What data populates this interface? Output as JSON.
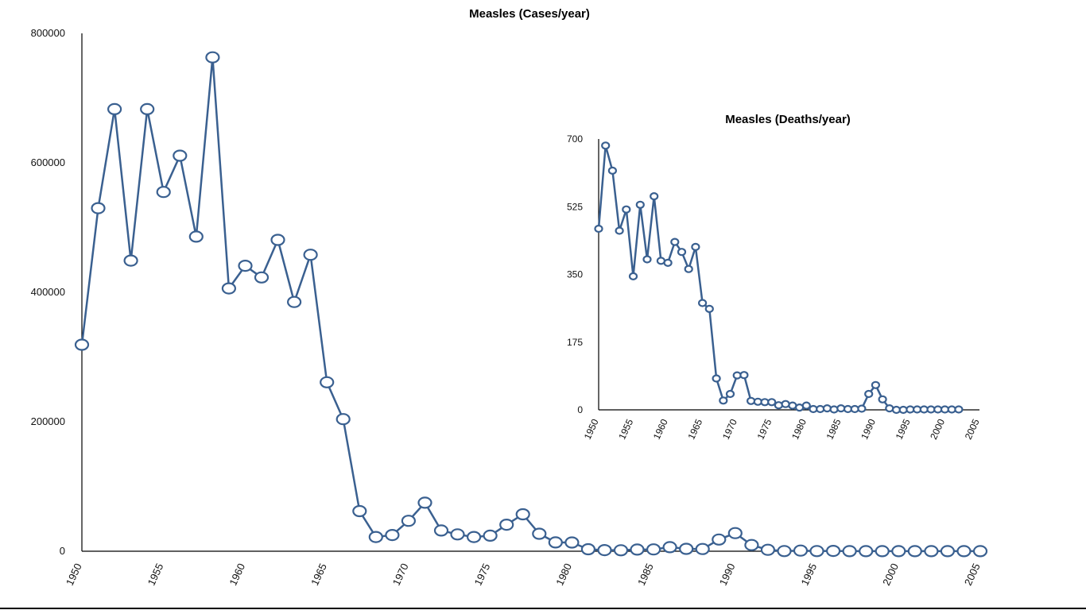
{
  "colors": {
    "series": "#3a6090"
  },
  "chart_data": [
    {
      "id": "cases",
      "type": "line",
      "title": "Measles (Cases/year)",
      "xlabel": "",
      "ylabel": "",
      "xlim": [
        1950,
        2005
      ],
      "ylim": [
        0,
        800000
      ],
      "y_ticks": [
        0,
        200000,
        400000,
        600000,
        800000
      ],
      "y_tick_labels": [
        "0",
        "200000",
        "400000",
        "600000",
        "800000"
      ],
      "x_ticks": [
        1950,
        1955,
        1960,
        1965,
        1970,
        1975,
        1980,
        1985,
        1990,
        1995,
        2000,
        2005
      ],
      "x_tick_labels": [
        "1950",
        "1955",
        "1960",
        "1965",
        "1970",
        "1975",
        "1980",
        "1985",
        "1990",
        "1995",
        "2000",
        "2005"
      ],
      "x": [
        1950,
        1951,
        1952,
        1953,
        1954,
        1955,
        1956,
        1957,
        1958,
        1959,
        1960,
        1961,
        1962,
        1963,
        1964,
        1965,
        1966,
        1967,
        1968,
        1969,
        1970,
        1971,
        1972,
        1973,
        1974,
        1975,
        1976,
        1977,
        1978,
        1979,
        1980,
        1981,
        1982,
        1983,
        1984,
        1985,
        1986,
        1987,
        1988,
        1989,
        1990,
        1991,
        1992,
        1993,
        1994,
        1995,
        1996,
        1997,
        1998,
        1999,
        2000,
        2001,
        2002,
        2003,
        2004,
        2005
      ],
      "values": [
        319000,
        530000,
        683000,
        449000,
        683000,
        555000,
        611000,
        486000,
        763000,
        406000,
        441000,
        423000,
        481000,
        385000,
        458000,
        261000,
        204000,
        62000,
        22000,
        25000,
        47000,
        75000,
        32000,
        26000,
        22000,
        24000,
        41000,
        57000,
        27000,
        13600,
        13500,
        3100,
        1700,
        1500,
        2600,
        2800,
        6300,
        3700,
        3400,
        18000,
        28000,
        9600,
        2200,
        300,
        1000,
        300,
        500,
        100,
        100,
        100,
        100,
        100,
        100,
        100,
        100,
        100
      ]
    },
    {
      "id": "deaths",
      "type": "line",
      "title": "Measles (Deaths/year)",
      "xlabel": "",
      "ylabel": "",
      "xlim": [
        1950,
        2005
      ],
      "ylim": [
        0,
        700
      ],
      "y_ticks": [
        0,
        175,
        350,
        525,
        700
      ],
      "y_tick_labels": [
        "0",
        "175",
        "350",
        "525",
        "700"
      ],
      "x_ticks": [
        1950,
        1955,
        1960,
        1965,
        1970,
        1975,
        1980,
        1985,
        1990,
        1995,
        2000,
        2005
      ],
      "x_tick_labels": [
        "1950",
        "1955",
        "1960",
        "1965",
        "1970",
        "1975",
        "1980",
        "1985",
        "1990",
        "1995",
        "2000",
        "2005"
      ],
      "x": [
        1950,
        1951,
        1952,
        1953,
        1954,
        1955,
        1956,
        1957,
        1958,
        1959,
        1960,
        1961,
        1962,
        1963,
        1964,
        1965,
        1966,
        1967,
        1968,
        1969,
        1970,
        1971,
        1972,
        1973,
        1974,
        1975,
        1976,
        1977,
        1978,
        1979,
        1980,
        1981,
        1982,
        1983,
        1984,
        1985,
        1986,
        1987,
        1988,
        1989,
        1990,
        1991,
        1992,
        1993,
        1994,
        1995,
        1996,
        1997,
        1998,
        1999,
        2000,
        2001,
        2002
      ],
      "values": [
        468,
        683,
        618,
        463,
        518,
        345,
        530,
        389,
        552,
        385,
        380,
        434,
        408,
        364,
        421,
        276,
        261,
        81,
        24,
        41,
        89,
        90,
        23,
        21,
        20,
        20,
        12,
        15,
        11,
        6,
        11,
        2,
        2,
        4,
        1,
        4,
        2,
        2,
        3,
        41,
        64,
        27,
        4,
        0,
        0,
        1,
        1,
        1,
        1,
        1,
        1,
        1,
        1
      ]
    }
  ]
}
